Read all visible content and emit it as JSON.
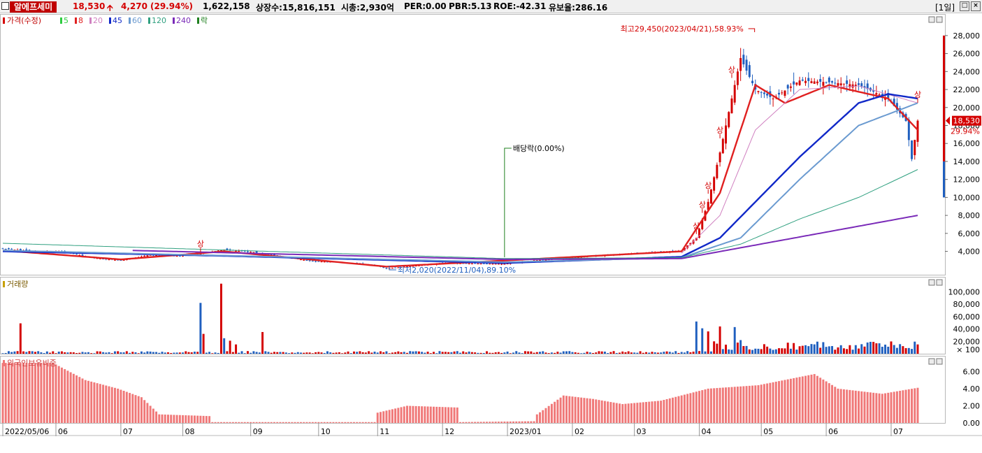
{
  "header": {
    "stock_name": "알에프세미",
    "price": "18,530",
    "change": "4,270",
    "change_pct": "(29.94%)",
    "volume": "1,622,158",
    "listed_shares": "상장수:15,816,151",
    "market_cap": "시총:2,930억",
    "per": "PER:0.00",
    "pbr": "PBR:5.13",
    "roe": "ROE:-42.31",
    "float_ratio": "유보율:286.16",
    "period": "[1일]",
    "up_color": "#d40000",
    "down_color": "#1f5fbf"
  },
  "chart_data": [
    {
      "type": "candlestick",
      "title": "",
      "legend": {
        "price_label": "가격(수정)",
        "ma": [
          {
            "label": "5",
            "color": "#2ecc40"
          },
          {
            "label": "8",
            "color": "#e02020"
          },
          {
            "label": "20",
            "color": "#d080c0"
          },
          {
            "label": "45",
            "color": "#1028c8"
          },
          {
            "label": "60",
            "color": "#6a9ad0"
          },
          {
            "label": "120",
            "color": "#30a080"
          },
          {
            "label": "240",
            "color": "#7a2ab8"
          },
          {
            "label": "락",
            "color": "#208020"
          }
        ],
        "placement": "top-left"
      },
      "x_ticks": [
        "2022/05/06",
        "06",
        "07",
        "08",
        "09",
        "10",
        "11",
        "12",
        "2023/01",
        "02",
        "03",
        "04",
        "05",
        "06",
        "07"
      ],
      "y_ticks": [
        "4,000",
        "6,000",
        "8,000",
        "10,000",
        "12,000",
        "14,000",
        "16,000",
        "18,000",
        "20,000",
        "22,000",
        "24,000",
        "26,000",
        "28,000"
      ],
      "ylim": [
        1400,
        30400
      ],
      "annotations": {
        "high": "최고29,450(2023/04/21),58.93%",
        "low": "최저2,020(2022/11/04),89.10%",
        "dividend": "배당락(0.00%)",
        "limit_up": "상"
      },
      "current_price_label": "18,530",
      "current_pct_label": "29.94%",
      "grid": false,
      "price_path": [
        [
          "2022/05/06",
          4300
        ],
        [
          "2022/05/20",
          4000
        ],
        [
          "2022/06/03",
          4000
        ],
        [
          "2022/06/17",
          3300
        ],
        [
          "2022/07/01",
          3000
        ],
        [
          "2022/07/15",
          3600
        ],
        [
          "2022/07/29",
          3500
        ],
        [
          "2022/08/08",
          3700
        ],
        [
          "2022/08/19",
          4200
        ],
        [
          "2022/09/02",
          3900
        ],
        [
          "2022/09/16",
          3400
        ],
        [
          "2022/09/30",
          2900
        ],
        [
          "2022/10/14",
          2800
        ],
        [
          "2022/10/28",
          2500
        ],
        [
          "2022/11/04",
          2100
        ],
        [
          "2022/11/18",
          2400
        ],
        [
          "2022/12/02",
          2700
        ],
        [
          "2022/12/16",
          2650
        ],
        [
          "2022/12/30",
          2600
        ],
        [
          "2023/01/13",
          3000
        ],
        [
          "2023/01/27",
          3200
        ],
        [
          "2023/02/10",
          3500
        ],
        [
          "2023/02/24",
          3700
        ],
        [
          "2023/03/10",
          3900
        ],
        [
          "2023/03/24",
          4100
        ],
        [
          "2023/03/31",
          5500
        ],
        [
          "2023/04/06",
          9500
        ],
        [
          "2023/04/12",
          15000
        ],
        [
          "2023/04/18",
          21000
        ],
        [
          "2023/04/21",
          25500
        ],
        [
          "2023/04/28",
          22000
        ],
        [
          "2023/05/08",
          21000
        ],
        [
          "2023/05/19",
          23000
        ],
        [
          "2023/06/02",
          22800
        ],
        [
          "2023/06/16",
          22500
        ],
        [
          "2023/06/30",
          21000
        ],
        [
          "2023/07/10",
          18500
        ],
        [
          "2023/07/12",
          14260
        ],
        [
          "2023/07/14",
          18530
        ]
      ],
      "ma_paths": [
        {
          "label": "8",
          "points": [
            [
              "2022/05/06",
              4100
            ],
            [
              "2022/07/01",
              3100
            ],
            [
              "2022/08/19",
              4000
            ],
            [
              "2022/11/04",
              2300
            ],
            [
              "2023/03/24",
              4000
            ],
            [
              "2023/04/12",
              10500
            ],
            [
              "2023/04/28",
              22500
            ],
            [
              "2023/05/12",
              20500
            ],
            [
              "2023/06/02",
              22500
            ],
            [
              "2023/06/30",
              21000
            ],
            [
              "2023/07/14",
              17500
            ]
          ]
        },
        {
          "label": "20",
          "points": [
            [
              "2023/03/24",
              3800
            ],
            [
              "2023/04/12",
              8000
            ],
            [
              "2023/04/28",
              17500
            ],
            [
              "2023/05/19",
              22000
            ],
            [
              "2023/06/16",
              22400
            ],
            [
              "2023/07/14",
              20500
            ]
          ]
        },
        {
          "label": "45",
          "points": [
            [
              "2022/05/06",
              4000
            ],
            [
              "2022/08/19",
              3500
            ],
            [
              "2022/12/30",
              2700
            ],
            [
              "2023/03/24",
              3400
            ],
            [
              "2023/04/12",
              5500
            ],
            [
              "2023/05/19",
              14500
            ],
            [
              "2023/06/16",
              20500
            ],
            [
              "2023/07/01",
              21500
            ],
            [
              "2023/07/14",
              21000
            ]
          ]
        },
        {
          "label": "60",
          "points": [
            [
              "2022/05/06",
              4100
            ],
            [
              "2022/12/30",
              2800
            ],
            [
              "2023/03/24",
              3300
            ],
            [
              "2023/04/21",
              5500
            ],
            [
              "2023/05/19",
              12000
            ],
            [
              "2023/06/16",
              18000
            ],
            [
              "2023/07/14",
              20500
            ]
          ]
        },
        {
          "label": "120",
          "points": [
            [
              "2022/05/06",
              4900
            ],
            [
              "2022/12/30",
              3200
            ],
            [
              "2023/03/24",
              3300
            ],
            [
              "2023/04/21",
              4800
            ],
            [
              "2023/05/19",
              7600
            ],
            [
              "2023/06/16",
              10000
            ],
            [
              "2023/07/14",
              13100
            ]
          ]
        },
        {
          "label": "240",
          "points": [
            [
              "2022/07/07",
              4100
            ],
            [
              "2022/12/30",
              3100
            ],
            [
              "2023/03/24",
              3200
            ],
            [
              "2023/04/21",
              4400
            ],
            [
              "2023/05/19",
              5600
            ],
            [
              "2023/06/16",
              6800
            ],
            [
              "2023/07/14",
              8000
            ]
          ]
        }
      ]
    },
    {
      "type": "bar",
      "title": "거래량",
      "y_ticks": [
        "20,000",
        "40,000",
        "60,000",
        "80,000",
        "100,000"
      ],
      "unit": "× 100",
      "ylim": [
        0,
        115000
      ],
      "spikes": [
        [
          "2022/05/16",
          49000
        ],
        [
          "2022/08/09",
          82000
        ],
        [
          "2022/08/10",
          32000
        ],
        [
          "2022/08/18",
          113000
        ],
        [
          "2022/08/19",
          25000
        ],
        [
          "2022/08/23",
          21000
        ],
        [
          "2022/08/25",
          15000
        ],
        [
          "2022/09/07",
          35000
        ],
        [
          "2023/03/31",
          52000
        ],
        [
          "2023/04/04",
          41000
        ],
        [
          "2023/04/06",
          36000
        ],
        [
          "2023/04/12",
          44000
        ],
        [
          "2023/04/19",
          43000
        ],
        [
          "2023/04/21",
          22000
        ],
        [
          "2023/07/14",
          15000
        ]
      ]
    },
    {
      "type": "bar",
      "title": "외국인보유비중",
      "y_ticks": [
        "0.00",
        "2.00",
        "4.00",
        "6.00"
      ],
      "ylim": [
        0,
        7.5
      ],
      "profile": [
        [
          "2022/05/06",
          7.0
        ],
        [
          "2022/05/31",
          7.0
        ],
        [
          "2022/06/15",
          5.0
        ],
        [
          "2022/06/30",
          4.0
        ],
        [
          "2022/07/12",
          3.0
        ],
        [
          "2022/07/20",
          1.0
        ],
        [
          "2022/08/12",
          0.8
        ],
        [
          "2022/08/13",
          0.1
        ],
        [
          "2022/10/31",
          0.1
        ],
        [
          "2022/11/01",
          1.2
        ],
        [
          "2022/11/15",
          2.0
        ],
        [
          "2022/12/08",
          1.8
        ],
        [
          "2022/12/09",
          0.1
        ],
        [
          "2023/01/15",
          0.2
        ],
        [
          "2023/01/16",
          1.0
        ],
        [
          "2023/01/27",
          3.2
        ],
        [
          "2023/02/10",
          2.8
        ],
        [
          "2023/02/24",
          2.2
        ],
        [
          "2023/03/15",
          2.6
        ],
        [
          "2023/04/06",
          4.0
        ],
        [
          "2023/05/01",
          4.4
        ],
        [
          "2023/05/26",
          5.7
        ],
        [
          "2023/06/07",
          4.0
        ],
        [
          "2023/06/28",
          3.4
        ],
        [
          "2023/07/14",
          4.1
        ]
      ]
    }
  ]
}
